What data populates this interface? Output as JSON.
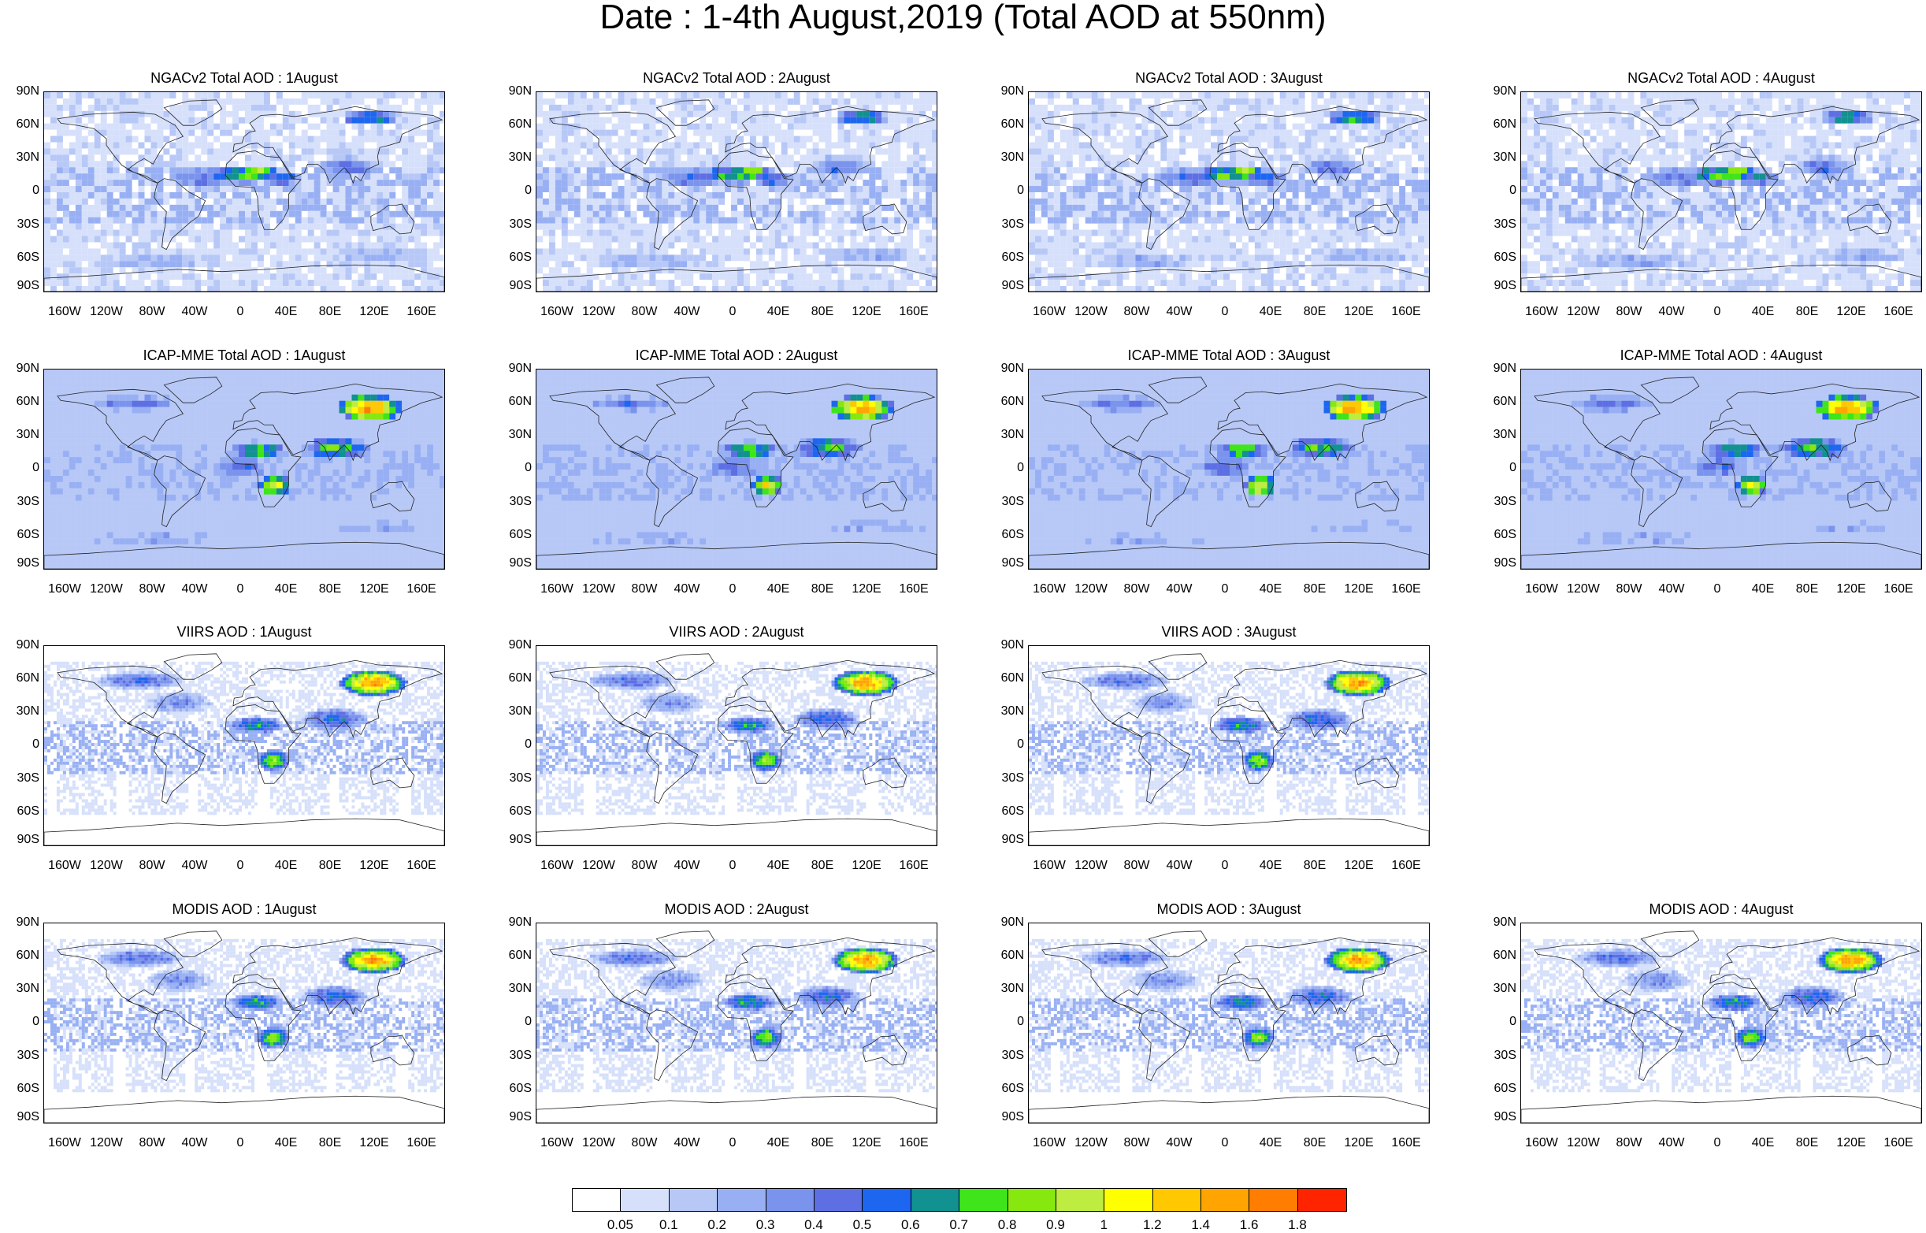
{
  "main_title": "Date : 1-4th August,2019 (Total AOD at 550nm)",
  "lat_labels": [
    "90N",
    "60N",
    "30N",
    "0",
    "30S",
    "60S",
    "90S"
  ],
  "lon_labels": [
    "160W",
    "120W",
    "80W",
    "40W",
    "0",
    "40E",
    "80E",
    "120E",
    "160E"
  ],
  "panels": [
    {
      "title": "NGACv2 Total AOD : 1August",
      "type": "model",
      "row": 0,
      "col": 0
    },
    {
      "title": "NGACv2 Total AOD : 2August",
      "type": "model",
      "row": 0,
      "col": 1
    },
    {
      "title": "NGACv2 Total AOD : 3August",
      "type": "model",
      "row": 0,
      "col": 2
    },
    {
      "title": "NGACv2 Total AOD : 4August",
      "type": "model",
      "row": 0,
      "col": 3
    },
    {
      "title": "ICAP-MME Total AOD : 1August",
      "type": "ensemble",
      "row": 1,
      "col": 0
    },
    {
      "title": "ICAP-MME Total AOD : 2August",
      "type": "ensemble",
      "row": 1,
      "col": 1
    },
    {
      "title": "ICAP-MME Total AOD : 3August",
      "type": "ensemble",
      "row": 1,
      "col": 2
    },
    {
      "title": "ICAP-MME Total AOD : 4August",
      "type": "ensemble",
      "row": 1,
      "col": 3
    },
    {
      "title": "VIIRS AOD : 1August",
      "type": "satellite",
      "row": 2,
      "col": 0
    },
    {
      "title": "VIIRS AOD : 2August",
      "type": "satellite",
      "row": 2,
      "col": 1
    },
    {
      "title": "VIIRS AOD : 3August",
      "type": "satellite",
      "row": 2,
      "col": 2
    },
    {
      "title": "MODIS AOD : 1August",
      "type": "satellite",
      "row": 3,
      "col": 0
    },
    {
      "title": "MODIS AOD : 2August",
      "type": "satellite",
      "row": 3,
      "col": 1
    },
    {
      "title": "MODIS AOD : 3August",
      "type": "satellite",
      "row": 3,
      "col": 2
    },
    {
      "title": "MODIS AOD : 4August",
      "type": "satellite",
      "row": 3,
      "col": 3
    }
  ],
  "colorbar": {
    "labels": [
      "0.05",
      "0.1",
      "0.2",
      "0.3",
      "0.4",
      "0.5",
      "0.6",
      "0.7",
      "0.8",
      "0.9",
      "1",
      "1.2",
      "1.4",
      "1.6",
      "1.8"
    ],
    "colors": [
      "#ffffff",
      "#d6e0fb",
      "#b7c8f7",
      "#98b0f3",
      "#7a93ec",
      "#5d6fe3",
      "#1d66f0",
      "#11918f",
      "#3fe51a",
      "#86e80e",
      "#bfec40",
      "#ffff00",
      "#ffc800",
      "#ffa400",
      "#ff7d00",
      "#ff2400"
    ]
  }
}
